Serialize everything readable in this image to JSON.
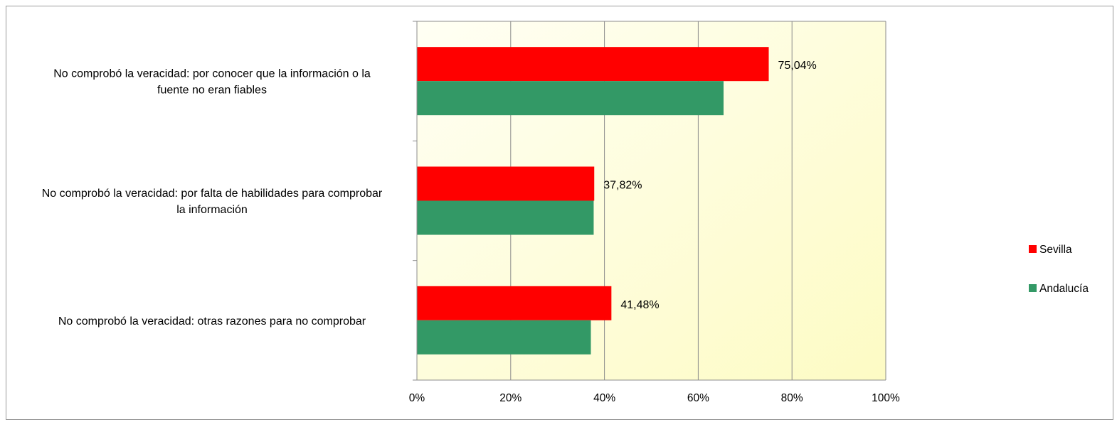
{
  "chart_data": {
    "type": "bar",
    "orientation": "horizontal",
    "categories": [
      [
        "No comprobó la veracidad: por conocer que la información o la",
        "fuente no eran fiables"
      ],
      [
        "No comprobó la veracidad: por falta de habilidades para comprobar",
        "la información"
      ],
      [
        "No comprobó la veracidad: otras razones para no comprobar"
      ]
    ],
    "series": [
      {
        "name": "Sevilla",
        "color": "#ff0000",
        "values": [
          75.04,
          37.82,
          41.48
        ],
        "data_labels": [
          "75,04%",
          "37,82%",
          "41,48%"
        ]
      },
      {
        "name": "Andalucía",
        "color": "#339966",
        "values": [
          65.4,
          37.7,
          37.1
        ]
      }
    ],
    "xlim": [
      0,
      100
    ],
    "x_ticks": [
      0,
      20,
      40,
      60,
      80,
      100
    ],
    "x_tick_labels": [
      "0%",
      "20%",
      "40%",
      "60%",
      "80%",
      "100%"
    ],
    "grid": "vertical",
    "legend_position": "right",
    "plot_background": [
      "#fffff4",
      "#fdfbc4"
    ]
  }
}
